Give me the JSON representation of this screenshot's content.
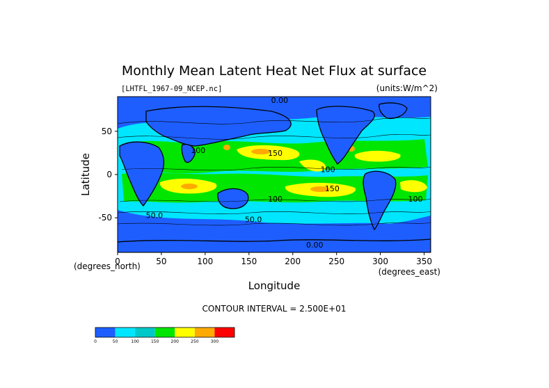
{
  "chart_data": {
    "type": "heatmap",
    "title": "Monthly Mean Latent Heat Net Flux at surface",
    "source_file": "[LHTFL_1967-09_NCEP.nc]",
    "units": "(units:W/m^2)",
    "xlabel": "Longitude",
    "ylabel": "Latitude",
    "x_units": "(degrees_east)",
    "y_units": "(degrees_north)",
    "xlim": [
      0,
      357.5
    ],
    "ylim": [
      -90,
      90
    ],
    "x_ticks": [
      0,
      50,
      100,
      150,
      200,
      250,
      300,
      350
    ],
    "y_ticks": [
      50,
      0,
      -50
    ],
    "contour_interval_label": "CONTOUR INTERVAL = 2.500E+01",
    "contour_labels": [
      {
        "text": "0.00",
        "lon": 185,
        "lat": 86
      },
      {
        "text": "100",
        "lon": 92,
        "lat": 28
      },
      {
        "text": "150",
        "lon": 180,
        "lat": 25
      },
      {
        "text": "100",
        "lon": 240,
        "lat": 6
      },
      {
        "text": "150",
        "lon": 245,
        "lat": -16
      },
      {
        "text": "100",
        "lon": 180,
        "lat": -28
      },
      {
        "text": "100",
        "lon": 340,
        "lat": -28
      },
      {
        "text": "50.0",
        "lon": 155,
        "lat": -52
      },
      {
        "text": "50.0",
        "lon": 42,
        "lat": -47
      },
      {
        "text": "0.00",
        "lon": 225,
        "lat": -81
      }
    ],
    "colorbar": {
      "colors": [
        "#1e5eff",
        "#00e6ff",
        "#00c8c8",
        "#00e600",
        "#ffff00",
        "#ffaa00",
        "#ff0000"
      ],
      "tick_labels": [
        "0",
        "50",
        "100",
        "150",
        "200",
        "250",
        "300"
      ]
    }
  }
}
